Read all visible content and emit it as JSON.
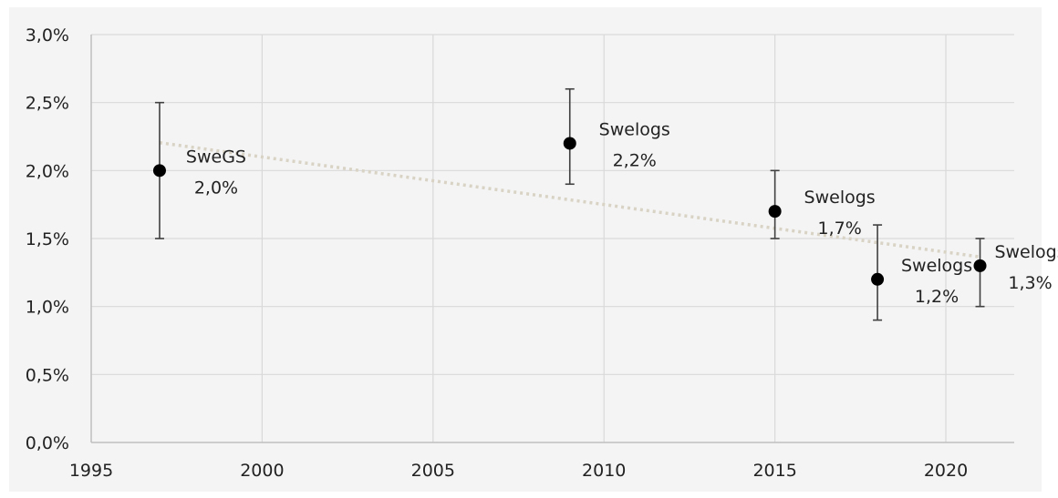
{
  "chart_data": {
    "type": "scatter",
    "x": [
      1997,
      2009,
      2015,
      2018,
      2021
    ],
    "y": [
      2.0,
      2.2,
      1.7,
      1.2,
      1.3
    ],
    "error_low": [
      1.5,
      1.9,
      1.5,
      0.9,
      1.0
    ],
    "error_high": [
      2.5,
      2.6,
      2.0,
      1.6,
      1.5
    ],
    "point_labels": [
      {
        "name": "SweGS",
        "value": "2,0%"
      },
      {
        "name": "Swelogs",
        "value": "2,2%"
      },
      {
        "name": "Swelogs",
        "value": "1,7%"
      },
      {
        "name": "Swelogs",
        "value": "1,2%"
      },
      {
        "name": "Swelogs",
        "value": "1,3%"
      }
    ],
    "trendline": {
      "type": "linear",
      "style": "dotted",
      "x_range": [
        1997,
        2021
      ]
    },
    "xlim": [
      1995,
      2022
    ],
    "ylim": [
      0,
      3.0
    ],
    "x_ticks": [
      1995,
      2000,
      2005,
      2010,
      2015,
      2020
    ],
    "y_ticks": [
      0,
      0.5,
      1.0,
      1.5,
      2.0,
      2.5,
      3.0
    ],
    "y_tick_labels": [
      "0,0%",
      "0,5%",
      "1,0%",
      "1,5%",
      "2,0%",
      "2,5%",
      "3,0%"
    ],
    "grid": true,
    "colors": {
      "point": "#000000",
      "errorbar": "#404040",
      "trend": "#d8d3c4",
      "grid": "#d9d9d9",
      "axis": "#bfbfbf"
    }
  }
}
